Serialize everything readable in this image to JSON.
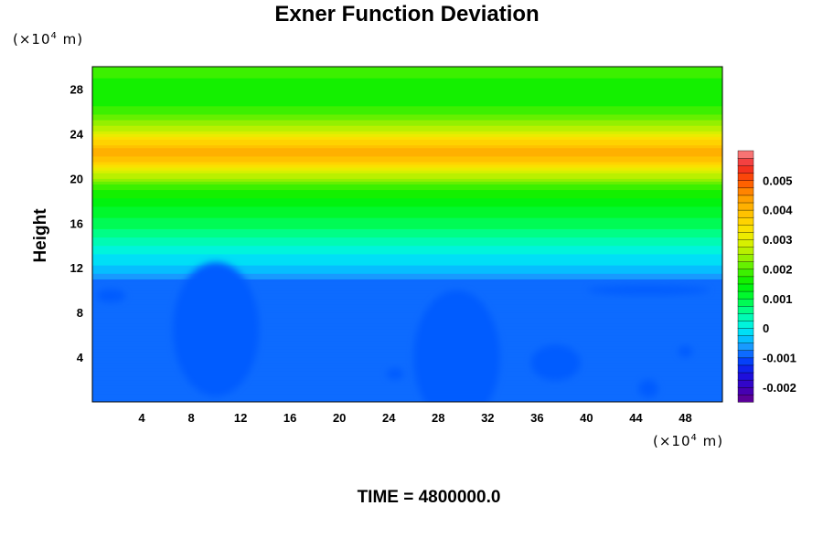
{
  "chart_data": {
    "type": "heatmap",
    "title": "Exner Function Deviation",
    "ylabel": "Height",
    "xlabel": "",
    "x_unit": {
      "prefix": "(×10",
      "exponent": "4",
      "suffix": " m)"
    },
    "y_unit": {
      "prefix": "(×10",
      "exponent": "4",
      "suffix": " m)"
    },
    "footer": "TIME = 4800000.0",
    "xlim": [
      0,
      51
    ],
    "ylim": [
      0,
      30
    ],
    "x_ticks": [
      "4",
      "8",
      "12",
      "16",
      "20",
      "24",
      "28",
      "32",
      "36",
      "40",
      "44",
      "48"
    ],
    "y_ticks": [
      "4",
      "8",
      "12",
      "16",
      "20",
      "24",
      "28"
    ],
    "colorbar": {
      "range": [
        -0.0025,
        0.006
      ],
      "tick_labels": [
        "0.005",
        "0.004",
        "0.003",
        "0.002",
        "0.001",
        "0",
        "-0.001",
        "-0.002"
      ],
      "tick_values": [
        0.005,
        0.004,
        0.003,
        0.002,
        0.001,
        0,
        -0.001,
        -0.002
      ],
      "levels": 34
    },
    "vertical_profile": [
      {
        "height": 0,
        "value": -0.0008
      },
      {
        "height": 11,
        "value": -0.0008
      },
      {
        "height": 11.5,
        "value": -0.0005
      },
      {
        "height": 12.5,
        "value": -0.0002
      },
      {
        "height": 13.5,
        "value": 0.0001
      },
      {
        "height": 15,
        "value": 0.0006
      },
      {
        "height": 17,
        "value": 0.0011
      },
      {
        "height": 19,
        "value": 0.0017
      },
      {
        "height": 20.5,
        "value": 0.0028
      },
      {
        "height": 21.5,
        "value": 0.0038
      },
      {
        "height": 22.3,
        "value": 0.0042
      },
      {
        "height": 23.2,
        "value": 0.0037
      },
      {
        "height": 24.5,
        "value": 0.0026
      },
      {
        "height": 26,
        "value": 0.0018
      },
      {
        "height": 28,
        "value": 0.0016
      },
      {
        "height": 30,
        "value": 0.0019
      }
    ],
    "anomalies": [
      {
        "x": 9.5,
        "y": 3.5,
        "value": -0.0013
      },
      {
        "x": 10,
        "y": 6.5,
        "value": -0.0011
      },
      {
        "x": 29.5,
        "y": 4,
        "value": -0.0011
      },
      {
        "x": 37.5,
        "y": 3.5,
        "value": -0.0011
      },
      {
        "x": 1.5,
        "y": 9.5,
        "value": -0.0011
      },
      {
        "x": 24.5,
        "y": 2.5,
        "value": -0.0011
      },
      {
        "x": 45,
        "y": 1.2,
        "value": -0.0011
      },
      {
        "x": 48,
        "y": 4.5,
        "value": -0.0011
      },
      {
        "x": 45,
        "y": 10,
        "value": -0.0011
      }
    ]
  }
}
